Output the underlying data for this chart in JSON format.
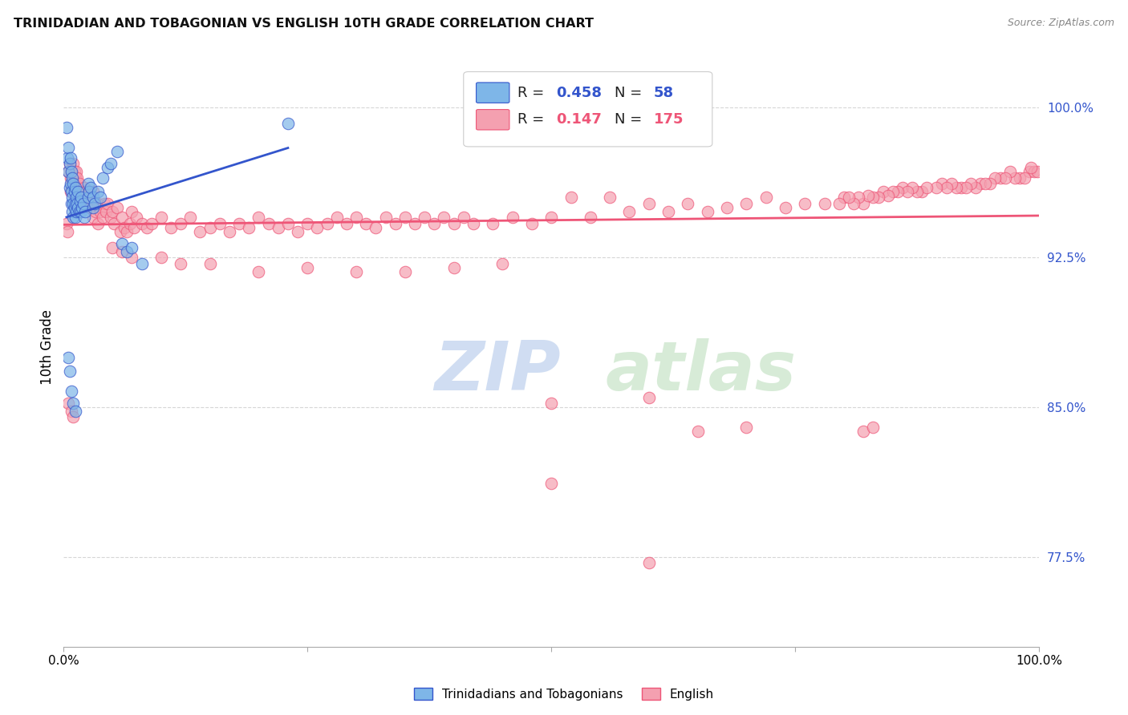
{
  "title": "TRINIDADIAN AND TOBAGONIAN VS ENGLISH 10TH GRADE CORRELATION CHART",
  "source": "Source: ZipAtlas.com",
  "ylabel": "10th Grade",
  "ytick_labels": [
    "77.5%",
    "85.0%",
    "92.5%",
    "100.0%"
  ],
  "ytick_values": [
    0.775,
    0.85,
    0.925,
    1.0
  ],
  "xlim": [
    0.0,
    1.0
  ],
  "ylim": [
    0.73,
    1.03
  ],
  "legend_blue_r": "0.458",
  "legend_blue_n": "58",
  "legend_pink_r": "0.147",
  "legend_pink_n": "175",
  "blue_color": "#7EB6E8",
  "pink_color": "#F4A0B0",
  "trendline_blue": "#3355CC",
  "trendline_pink": "#EE5577",
  "watermark_zip": "ZIP",
  "watermark_atlas": "atlas",
  "blue_scatter": [
    [
      0.003,
      0.99
    ],
    [
      0.004,
      0.975
    ],
    [
      0.005,
      0.98
    ],
    [
      0.005,
      0.968
    ],
    [
      0.006,
      0.972
    ],
    [
      0.006,
      0.96
    ],
    [
      0.007,
      0.975
    ],
    [
      0.007,
      0.962
    ],
    [
      0.008,
      0.968
    ],
    [
      0.008,
      0.958
    ],
    [
      0.008,
      0.952
    ],
    [
      0.009,
      0.965
    ],
    [
      0.009,
      0.955
    ],
    [
      0.009,
      0.948
    ],
    [
      0.01,
      0.962
    ],
    [
      0.01,
      0.952
    ],
    [
      0.01,
      0.945
    ],
    [
      0.011,
      0.958
    ],
    [
      0.011,
      0.95
    ],
    [
      0.012,
      0.96
    ],
    [
      0.012,
      0.952
    ],
    [
      0.012,
      0.945
    ],
    [
      0.013,
      0.955
    ],
    [
      0.013,
      0.948
    ],
    [
      0.014,
      0.952
    ],
    [
      0.015,
      0.958
    ],
    [
      0.015,
      0.95
    ],
    [
      0.016,
      0.948
    ],
    [
      0.017,
      0.953
    ],
    [
      0.018,
      0.955
    ],
    [
      0.018,
      0.948
    ],
    [
      0.019,
      0.95
    ],
    [
      0.02,
      0.952
    ],
    [
      0.021,
      0.945
    ],
    [
      0.022,
      0.948
    ],
    [
      0.025,
      0.962
    ],
    [
      0.025,
      0.955
    ],
    [
      0.026,
      0.958
    ],
    [
      0.028,
      0.96
    ],
    [
      0.03,
      0.955
    ],
    [
      0.03,
      0.95
    ],
    [
      0.032,
      0.952
    ],
    [
      0.035,
      0.958
    ],
    [
      0.038,
      0.955
    ],
    [
      0.04,
      0.965
    ],
    [
      0.045,
      0.97
    ],
    [
      0.048,
      0.972
    ],
    [
      0.055,
      0.978
    ],
    [
      0.06,
      0.932
    ],
    [
      0.065,
      0.928
    ],
    [
      0.07,
      0.93
    ],
    [
      0.08,
      0.922
    ],
    [
      0.005,
      0.875
    ],
    [
      0.006,
      0.868
    ],
    [
      0.008,
      0.858
    ],
    [
      0.01,
      0.852
    ],
    [
      0.012,
      0.848
    ],
    [
      0.23,
      0.992
    ]
  ],
  "pink_scatter": [
    [
      0.005,
      0.968
    ],
    [
      0.006,
      0.972
    ],
    [
      0.007,
      0.965
    ],
    [
      0.007,
      0.958
    ],
    [
      0.008,
      0.968
    ],
    [
      0.008,
      0.962
    ],
    [
      0.009,
      0.965
    ],
    [
      0.009,
      0.958
    ],
    [
      0.01,
      0.972
    ],
    [
      0.01,
      0.96
    ],
    [
      0.011,
      0.968
    ],
    [
      0.011,
      0.962
    ],
    [
      0.012,
      0.965
    ],
    [
      0.012,
      0.958
    ],
    [
      0.013,
      0.968
    ],
    [
      0.013,
      0.96
    ],
    [
      0.014,
      0.958
    ],
    [
      0.014,
      0.965
    ],
    [
      0.015,
      0.96
    ],
    [
      0.015,
      0.954
    ],
    [
      0.016,
      0.962
    ],
    [
      0.017,
      0.958
    ],
    [
      0.018,
      0.955
    ],
    [
      0.019,
      0.952
    ],
    [
      0.02,
      0.958
    ],
    [
      0.021,
      0.96
    ],
    [
      0.022,
      0.955
    ],
    [
      0.023,
      0.958
    ],
    [
      0.024,
      0.952
    ],
    [
      0.025,
      0.955
    ],
    [
      0.026,
      0.958
    ],
    [
      0.027,
      0.95
    ],
    [
      0.028,
      0.952
    ],
    [
      0.03,
      0.958
    ],
    [
      0.03,
      0.945
    ],
    [
      0.032,
      0.95
    ],
    [
      0.033,
      0.948
    ],
    [
      0.035,
      0.952
    ],
    [
      0.035,
      0.942
    ],
    [
      0.038,
      0.948
    ],
    [
      0.04,
      0.945
    ],
    [
      0.042,
      0.952
    ],
    [
      0.043,
      0.948
    ],
    [
      0.045,
      0.952
    ],
    [
      0.048,
      0.945
    ],
    [
      0.05,
      0.948
    ],
    [
      0.052,
      0.942
    ],
    [
      0.055,
      0.95
    ],
    [
      0.058,
      0.938
    ],
    [
      0.06,
      0.945
    ],
    [
      0.062,
      0.94
    ],
    [
      0.065,
      0.938
    ],
    [
      0.068,
      0.942
    ],
    [
      0.07,
      0.948
    ],
    [
      0.072,
      0.94
    ],
    [
      0.075,
      0.945
    ],
    [
      0.08,
      0.942
    ],
    [
      0.085,
      0.94
    ],
    [
      0.09,
      0.942
    ],
    [
      0.1,
      0.945
    ],
    [
      0.11,
      0.94
    ],
    [
      0.12,
      0.942
    ],
    [
      0.13,
      0.945
    ],
    [
      0.14,
      0.938
    ],
    [
      0.15,
      0.94
    ],
    [
      0.16,
      0.942
    ],
    [
      0.17,
      0.938
    ],
    [
      0.18,
      0.942
    ],
    [
      0.19,
      0.94
    ],
    [
      0.2,
      0.945
    ],
    [
      0.21,
      0.942
    ],
    [
      0.22,
      0.94
    ],
    [
      0.23,
      0.942
    ],
    [
      0.24,
      0.938
    ],
    [
      0.25,
      0.942
    ],
    [
      0.26,
      0.94
    ],
    [
      0.27,
      0.942
    ],
    [
      0.28,
      0.945
    ],
    [
      0.29,
      0.942
    ],
    [
      0.3,
      0.945
    ],
    [
      0.31,
      0.942
    ],
    [
      0.32,
      0.94
    ],
    [
      0.33,
      0.945
    ],
    [
      0.34,
      0.942
    ],
    [
      0.35,
      0.945
    ],
    [
      0.36,
      0.942
    ],
    [
      0.37,
      0.945
    ],
    [
      0.38,
      0.942
    ],
    [
      0.39,
      0.945
    ],
    [
      0.4,
      0.942
    ],
    [
      0.41,
      0.945
    ],
    [
      0.42,
      0.942
    ],
    [
      0.44,
      0.942
    ],
    [
      0.46,
      0.945
    ],
    [
      0.48,
      0.942
    ],
    [
      0.5,
      0.945
    ],
    [
      0.52,
      0.955
    ],
    [
      0.54,
      0.945
    ],
    [
      0.56,
      0.955
    ],
    [
      0.58,
      0.948
    ],
    [
      0.6,
      0.952
    ],
    [
      0.62,
      0.948
    ],
    [
      0.64,
      0.952
    ],
    [
      0.66,
      0.948
    ],
    [
      0.68,
      0.95
    ],
    [
      0.7,
      0.952
    ],
    [
      0.72,
      0.955
    ],
    [
      0.74,
      0.95
    ],
    [
      0.76,
      0.952
    ],
    [
      0.78,
      0.952
    ],
    [
      0.8,
      0.955
    ],
    [
      0.82,
      0.952
    ],
    [
      0.84,
      0.958
    ],
    [
      0.86,
      0.96
    ],
    [
      0.88,
      0.958
    ],
    [
      0.9,
      0.962
    ],
    [
      0.92,
      0.96
    ],
    [
      0.94,
      0.962
    ],
    [
      0.96,
      0.965
    ],
    [
      0.98,
      0.965
    ],
    [
      0.99,
      0.968
    ],
    [
      0.995,
      0.968
    ],
    [
      0.998,
      0.968
    ],
    [
      0.992,
      0.97
    ],
    [
      0.985,
      0.965
    ],
    [
      0.975,
      0.965
    ],
    [
      0.97,
      0.968
    ],
    [
      0.965,
      0.965
    ],
    [
      0.955,
      0.965
    ],
    [
      0.95,
      0.962
    ],
    [
      0.945,
      0.962
    ],
    [
      0.935,
      0.96
    ],
    [
      0.93,
      0.962
    ],
    [
      0.925,
      0.96
    ],
    [
      0.915,
      0.96
    ],
    [
      0.91,
      0.962
    ],
    [
      0.905,
      0.96
    ],
    [
      0.895,
      0.96
    ],
    [
      0.885,
      0.96
    ],
    [
      0.875,
      0.958
    ],
    [
      0.87,
      0.96
    ],
    [
      0.865,
      0.958
    ],
    [
      0.855,
      0.958
    ],
    [
      0.85,
      0.958
    ],
    [
      0.845,
      0.956
    ],
    [
      0.835,
      0.955
    ],
    [
      0.83,
      0.955
    ],
    [
      0.825,
      0.956
    ],
    [
      0.815,
      0.955
    ],
    [
      0.81,
      0.952
    ],
    [
      0.805,
      0.955
    ],
    [
      0.795,
      0.952
    ],
    [
      0.003,
      0.942
    ],
    [
      0.004,
      0.938
    ],
    [
      0.05,
      0.93
    ],
    [
      0.06,
      0.928
    ],
    [
      0.07,
      0.925
    ],
    [
      0.1,
      0.925
    ],
    [
      0.12,
      0.922
    ],
    [
      0.15,
      0.922
    ],
    [
      0.2,
      0.918
    ],
    [
      0.25,
      0.92
    ],
    [
      0.3,
      0.918
    ],
    [
      0.35,
      0.918
    ],
    [
      0.4,
      0.92
    ],
    [
      0.45,
      0.922
    ],
    [
      0.005,
      0.852
    ],
    [
      0.008,
      0.848
    ],
    [
      0.01,
      0.845
    ],
    [
      0.5,
      0.852
    ],
    [
      0.6,
      0.855
    ],
    [
      0.5,
      0.812
    ],
    [
      0.6,
      0.772
    ],
    [
      0.65,
      0.838
    ],
    [
      0.7,
      0.84
    ],
    [
      0.82,
      0.838
    ],
    [
      0.83,
      0.84
    ]
  ]
}
